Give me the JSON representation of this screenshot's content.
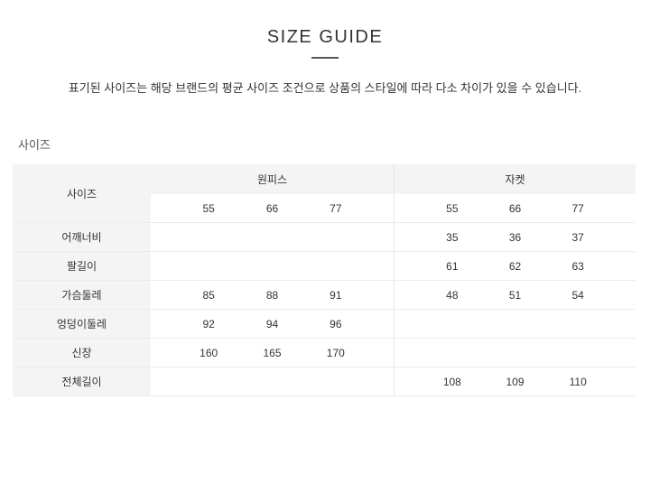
{
  "page": {
    "title": "SIZE GUIDE",
    "description": "표기된 사이즈는 해당 브랜드의 평균 사이즈 조건으로 상품의 스타일에 따라 다소 차이가 있을 수 있습니다.",
    "section_label": "사이즈"
  },
  "table": {
    "corner_header": "사이즈",
    "groups": [
      {
        "label": "원피스",
        "sizes": [
          "55",
          "66",
          "77"
        ]
      },
      {
        "label": "자켓",
        "sizes": [
          "55",
          "66",
          "77"
        ]
      }
    ],
    "rows": [
      {
        "label": "어깨너비",
        "onepiece": [
          "",
          "",
          ""
        ],
        "jacket": [
          "35",
          "36",
          "37"
        ]
      },
      {
        "label": "팔길이",
        "onepiece": [
          "",
          "",
          ""
        ],
        "jacket": [
          "61",
          "62",
          "63"
        ]
      },
      {
        "label": "가슴둘레",
        "onepiece": [
          "85",
          "88",
          "91"
        ],
        "jacket": [
          "48",
          "51",
          "54"
        ]
      },
      {
        "label": "엉덩이둘레",
        "onepiece": [
          "92",
          "94",
          "96"
        ],
        "jacket": [
          "",
          "",
          ""
        ]
      },
      {
        "label": "신장",
        "onepiece": [
          "160",
          "165",
          "170"
        ],
        "jacket": [
          "",
          "",
          ""
        ]
      },
      {
        "label": "전체길이",
        "onepiece": [
          "",
          "",
          ""
        ],
        "jacket": [
          "108",
          "109",
          "110"
        ]
      }
    ]
  },
  "colors": {
    "header_bg": "#f4f4f4",
    "border": "#ececec",
    "text": "#333333",
    "underline": "#555555"
  }
}
